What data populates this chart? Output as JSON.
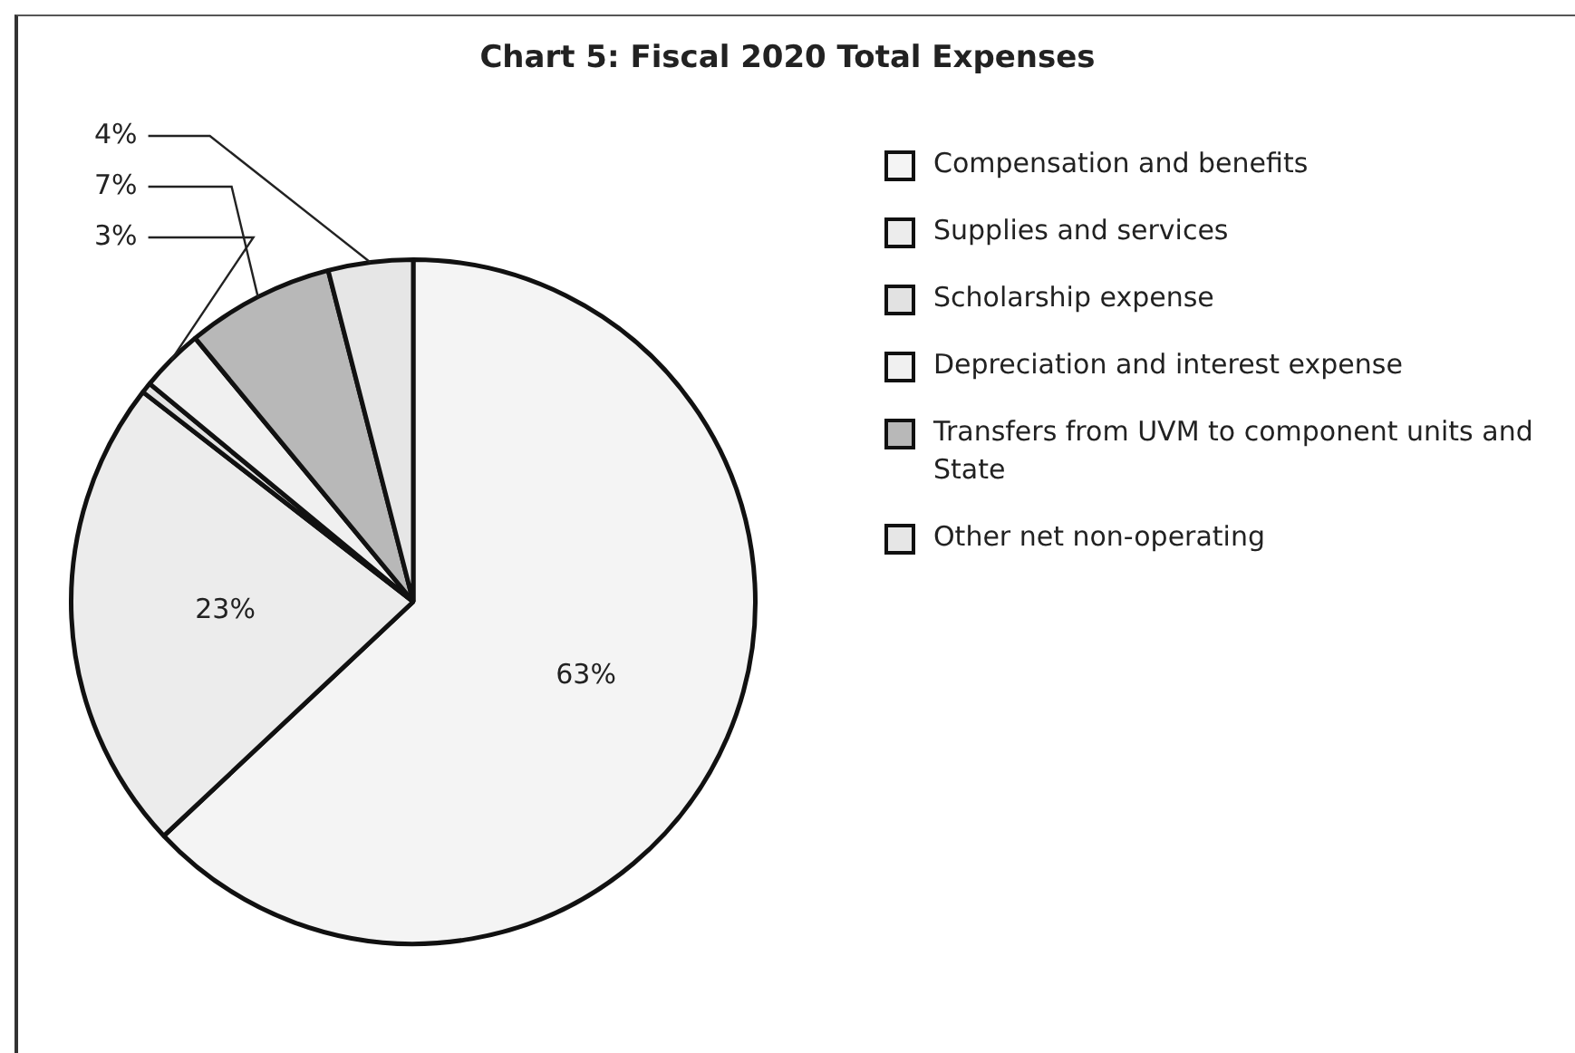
{
  "chart_data": {
    "type": "pie",
    "title": "Chart 5: Fiscal 2020 Total Expenses",
    "categories": [
      "Compensation and benefits",
      "Supplies and services",
      "Scholarship expense",
      "Depreciation and interest expense",
      "Transfers from UVM to component units and State",
      "Other net non-operating"
    ],
    "values": [
      63,
      22.5,
      0.5,
      3,
      7,
      4
    ],
    "colors": [
      "#f4f4f4",
      "#ececec",
      "#e2e2e2",
      "#f0f0f0",
      "#b8b8b8",
      "#e6e6e6"
    ],
    "value_labels": [
      "63%",
      "23%",
      null,
      "3%",
      "7%",
      "4%"
    ],
    "legend": "right"
  }
}
